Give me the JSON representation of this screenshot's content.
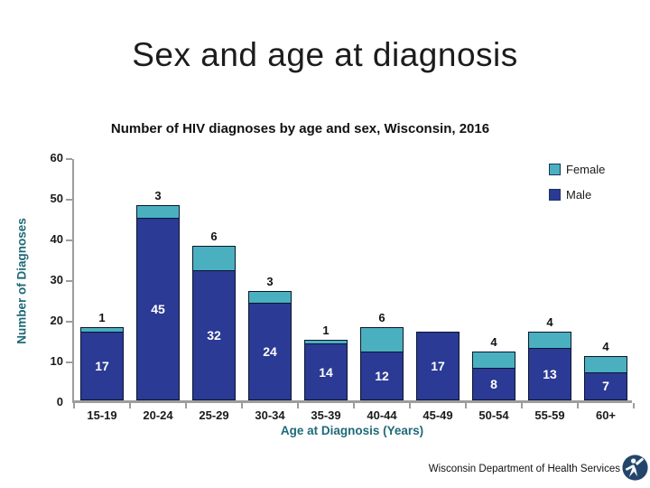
{
  "slide": {
    "title": "Sex and age at diagnosis",
    "footer": "Wisconsin Department of Health Services"
  },
  "chart": {
    "title": "Number of HIV diagnoses by age and sex, Wisconsin, 2016",
    "legend": [
      {
        "label": "Female",
        "color": "#4ab0bf"
      },
      {
        "label": "Male",
        "color": "#2b3a94"
      }
    ],
    "colors": {
      "female_fill": "#4ab0bf",
      "male_fill": "#2b3a94",
      "segment_border": "#0b1530",
      "axis_line": "#9d9d9d",
      "axis_title_text": "#1e6a78",
      "male_label_text": "#ffffff",
      "female_label_text": "#111111"
    }
  },
  "chart_data": {
    "type": "bar",
    "stacked": true,
    "title": "Number of HIV diagnoses by age and sex, Wisconsin, 2016",
    "categories": [
      "15-19",
      "20-24",
      "25-29",
      "30-34",
      "35-39",
      "40-44",
      "45-49",
      "50-54",
      "55-59",
      "60+"
    ],
    "series": [
      {
        "name": "Male",
        "color": "#2b3a94",
        "values": [
          17,
          45,
          32,
          24,
          14,
          12,
          17,
          8,
          13,
          7
        ]
      },
      {
        "name": "Female",
        "color": "#4ab0bf",
        "values": [
          1,
          3,
          6,
          3,
          1,
          6,
          0,
          4,
          4,
          4
        ]
      }
    ],
    "totals": [
      18,
      48,
      38,
      27,
      15,
      18,
      17,
      12,
      17,
      11
    ],
    "xlabel": "Age at Diagnosis (Years)",
    "ylabel": "Number of Diagnoses",
    "ylim": [
      0,
      60
    ],
    "y_ticks": [
      0,
      10,
      20,
      30,
      40,
      50,
      60
    ],
    "grid": false,
    "data_labels": true,
    "legend_position": "top-right",
    "legend_order": [
      "Female",
      "Male"
    ]
  }
}
